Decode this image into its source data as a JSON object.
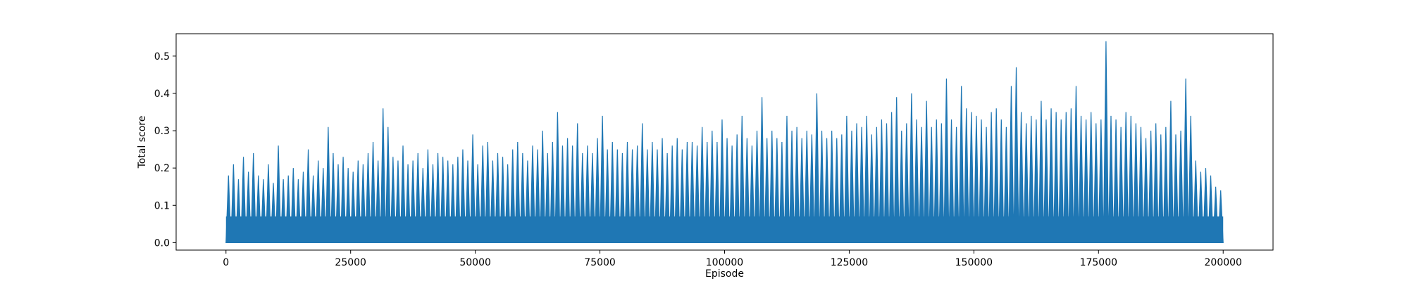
{
  "chart_data": {
    "type": "line",
    "title": "",
    "xlabel": "Episode",
    "ylabel": "Total score",
    "xlim": [
      -10000,
      210000
    ],
    "ylim": [
      -0.02,
      0.56
    ],
    "xticks": [
      0,
      25000,
      50000,
      75000,
      100000,
      125000,
      150000,
      175000,
      200000
    ],
    "xtick_labels": [
      "0",
      "25000",
      "50000",
      "75000",
      "100000",
      "125000",
      "150000",
      "175000",
      "200000"
    ],
    "yticks": [
      0.0,
      0.1,
      0.2,
      0.3,
      0.4,
      0.5
    ],
    "ytick_labels": [
      "0.0",
      "0.1",
      "0.2",
      "0.3",
      "0.4",
      "0.5"
    ],
    "grid": false,
    "legend": "none",
    "series": [
      {
        "color": "#1f77b4",
        "floor": 0.0,
        "x_step": 1000,
        "x": [
          0,
          1000,
          2000,
          3000,
          4000,
          5000,
          6000,
          7000,
          8000,
          9000,
          10000,
          11000,
          12000,
          13000,
          14000,
          15000,
          16000,
          17000,
          18000,
          19000,
          20000,
          21000,
          22000,
          23000,
          24000,
          25000,
          26000,
          27000,
          28000,
          29000,
          30000,
          31000,
          32000,
          33000,
          34000,
          35000,
          36000,
          37000,
          38000,
          39000,
          40000,
          41000,
          42000,
          43000,
          44000,
          45000,
          46000,
          47000,
          48000,
          49000,
          50000,
          51000,
          52000,
          53000,
          54000,
          55000,
          56000,
          57000,
          58000,
          59000,
          60000,
          61000,
          62000,
          63000,
          64000,
          65000,
          66000,
          67000,
          68000,
          69000,
          70000,
          71000,
          72000,
          73000,
          74000,
          75000,
          76000,
          77000,
          78000,
          79000,
          80000,
          81000,
          82000,
          83000,
          84000,
          85000,
          86000,
          87000,
          88000,
          89000,
          90000,
          91000,
          92000,
          93000,
          94000,
          95000,
          96000,
          97000,
          98000,
          99000,
          100000,
          101000,
          102000,
          103000,
          104000,
          105000,
          106000,
          107000,
          108000,
          109000,
          110000,
          111000,
          112000,
          113000,
          114000,
          115000,
          116000,
          117000,
          118000,
          119000,
          120000,
          121000,
          122000,
          123000,
          124000,
          125000,
          126000,
          127000,
          128000,
          129000,
          130000,
          131000,
          132000,
          133000,
          134000,
          135000,
          136000,
          137000,
          138000,
          139000,
          140000,
          141000,
          142000,
          143000,
          144000,
          145000,
          146000,
          147000,
          148000,
          149000,
          150000,
          151000,
          152000,
          153000,
          154000,
          155000,
          156000,
          157000,
          158000,
          159000,
          160000,
          161000,
          162000,
          163000,
          164000,
          165000,
          166000,
          167000,
          168000,
          169000,
          170000,
          171000,
          172000,
          173000,
          174000,
          175000,
          176000,
          177000,
          178000,
          179000,
          180000,
          181000,
          182000,
          183000,
          184000,
          185000,
          186000,
          187000,
          188000,
          189000,
          190000,
          191000,
          192000,
          193000,
          194000,
          195000,
          196000,
          197000,
          198000,
          199000
        ],
        "peaks": [
          0.18,
          0.21,
          0.17,
          0.23,
          0.19,
          0.24,
          0.18,
          0.17,
          0.21,
          0.16,
          0.26,
          0.17,
          0.18,
          0.2,
          0.17,
          0.19,
          0.25,
          0.18,
          0.22,
          0.2,
          0.31,
          0.24,
          0.21,
          0.23,
          0.2,
          0.19,
          0.22,
          0.21,
          0.24,
          0.27,
          0.22,
          0.36,
          0.31,
          0.23,
          0.22,
          0.26,
          0.21,
          0.22,
          0.24,
          0.2,
          0.25,
          0.21,
          0.24,
          0.23,
          0.22,
          0.21,
          0.23,
          0.25,
          0.22,
          0.29,
          0.21,
          0.26,
          0.27,
          0.22,
          0.24,
          0.23,
          0.21,
          0.25,
          0.27,
          0.24,
          0.22,
          0.26,
          0.25,
          0.3,
          0.24,
          0.27,
          0.35,
          0.26,
          0.28,
          0.26,
          0.32,
          0.24,
          0.26,
          0.24,
          0.28,
          0.34,
          0.25,
          0.27,
          0.25,
          0.24,
          0.27,
          0.25,
          0.26,
          0.32,
          0.25,
          0.27,
          0.25,
          0.28,
          0.24,
          0.26,
          0.28,
          0.25,
          0.27,
          0.27,
          0.26,
          0.31,
          0.27,
          0.3,
          0.27,
          0.33,
          0.28,
          0.26,
          0.29,
          0.34,
          0.28,
          0.26,
          0.3,
          0.39,
          0.28,
          0.3,
          0.28,
          0.27,
          0.34,
          0.3,
          0.31,
          0.28,
          0.3,
          0.29,
          0.4,
          0.3,
          0.28,
          0.3,
          0.28,
          0.29,
          0.34,
          0.3,
          0.32,
          0.31,
          0.34,
          0.29,
          0.31,
          0.33,
          0.32,
          0.35,
          0.39,
          0.3,
          0.32,
          0.4,
          0.33,
          0.31,
          0.38,
          0.31,
          0.33,
          0.32,
          0.44,
          0.33,
          0.31,
          0.42,
          0.36,
          0.35,
          0.34,
          0.33,
          0.31,
          0.35,
          0.36,
          0.33,
          0.31,
          0.42,
          0.47,
          0.35,
          0.32,
          0.34,
          0.33,
          0.38,
          0.33,
          0.36,
          0.35,
          0.33,
          0.35,
          0.36,
          0.42,
          0.34,
          0.33,
          0.35,
          0.32,
          0.33,
          0.54,
          0.34,
          0.33,
          0.31,
          0.35,
          0.34,
          0.32,
          0.31,
          0.28,
          0.3,
          0.32,
          0.29,
          0.31,
          0.38,
          0.29,
          0.3,
          0.44,
          0.34,
          0.22,
          0.19,
          0.2,
          0.18,
          0.15,
          0.14,
          0.13,
          0.12
        ]
      }
    ]
  }
}
